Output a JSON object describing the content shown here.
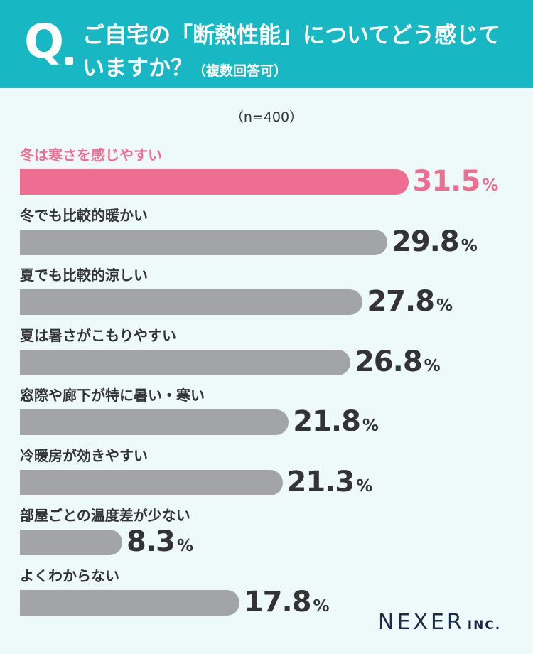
{
  "header": {
    "q_letter": "Q",
    "line1": "ご自宅の「断熱性能」についてどう感じて",
    "line2": "いますか？",
    "note": "（複数回答可）"
  },
  "sample": "（n=400）",
  "logo": {
    "main": "NEXER",
    "sub": "INC."
  },
  "colors": {
    "header_bg": "#17b8c4",
    "highlight": "#ee6e91",
    "bar_default": "#a3a4a8",
    "background": "#eefafa"
  },
  "chart_data": {
    "type": "bar",
    "orientation": "horizontal",
    "unit": "%",
    "categories": [
      "冬は寒さを感じやすい",
      "冬でも比較的暖かい",
      "夏でも比較的涼しい",
      "夏は暑さがこもりやすい",
      "窓際や廊下が特に暑い・寒い",
      "冷暖房が効きやすい",
      "部屋ごとの温度差が少ない",
      "よくわからない"
    ],
    "values": [
      31.5,
      29.8,
      27.8,
      26.8,
      21.8,
      21.3,
      8.3,
      17.8
    ],
    "value_labels": [
      "31.5",
      "29.8",
      "27.8",
      "26.8",
      "21.8",
      "21.3",
      "8.3",
      "17.8"
    ],
    "highlight_index": 0
  }
}
